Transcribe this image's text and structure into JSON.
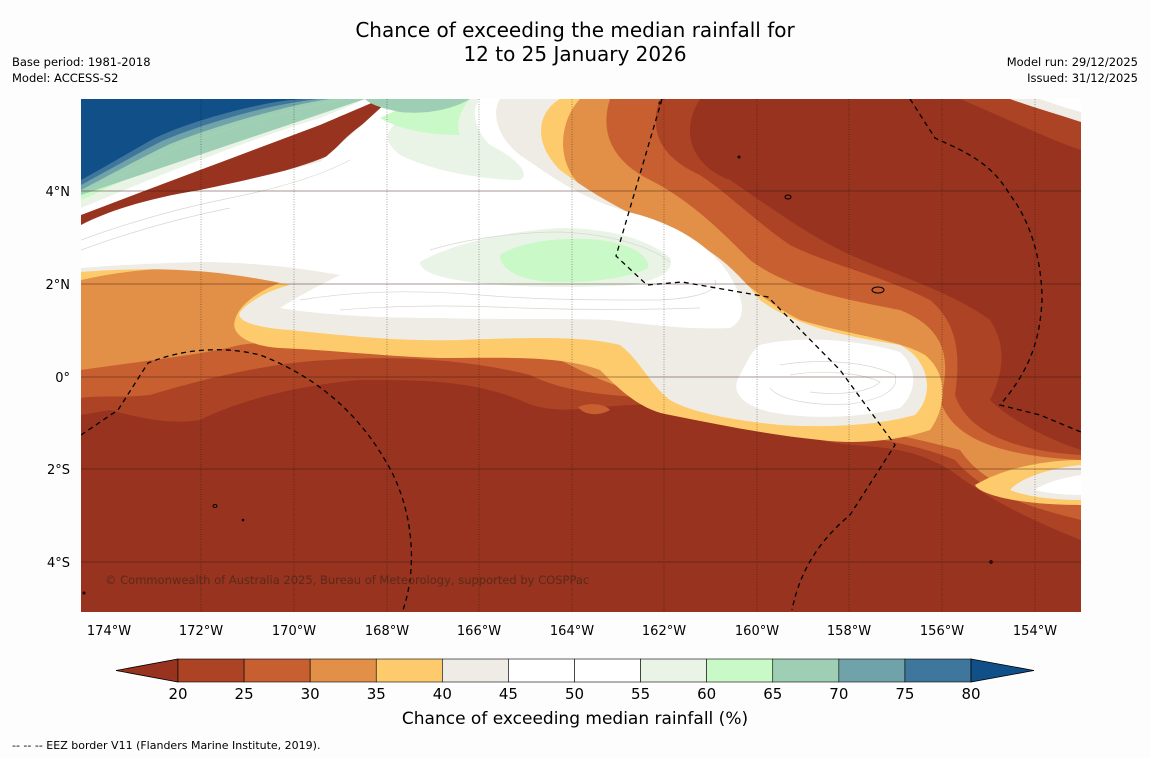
{
  "header": {
    "title_line1": "Chance of exceeding the median rainfall for",
    "title_line2": "12 to 25 January 2026",
    "base_period": "Base period: 1981-2018",
    "model": "Model: ACCESS-S2",
    "model_run": "Model run: 29/12/2025",
    "issued": "Issued: 31/12/2025"
  },
  "map": {
    "lon_ticks": [
      "174°W",
      "172°W",
      "170°W",
      "168°W",
      "166°W",
      "164°W",
      "162°W",
      "160°W",
      "158°W",
      "156°W",
      "154°W"
    ],
    "lat_ticks": [
      "4°N",
      "2°N",
      "0°",
      "2°S",
      "4°S"
    ],
    "copyright": "© Commonwealth of Australia 2025, Bureau of Meteorology, supported by COSPPac",
    "colors": {
      "c15": "#97331f",
      "c20": "#ac4324",
      "c25": "#c75f30",
      "c30": "#e28f47",
      "c35": "#fdcb6b",
      "c40": "#efebe5",
      "c45": "#ffffff",
      "c55": "#e9f4e7",
      "c60": "#c8f9c6",
      "c65": "#9ecfb4",
      "c70": "#6fa3a9",
      "c75": "#3f779c",
      "c80": "#114f88"
    }
  },
  "colorbar": {
    "ticks": [
      "20",
      "25",
      "30",
      "35",
      "40",
      "45",
      "50",
      "55",
      "60",
      "65",
      "70",
      "75",
      "80"
    ],
    "colors": [
      "#97331f",
      "#ac4324",
      "#c75f30",
      "#e28f47",
      "#fdcb6b",
      "#efebe5",
      "#ffffff",
      "#ffffff",
      "#e9f4e7",
      "#c8f9c6",
      "#9ecfb4",
      "#6fa3a9",
      "#3f779c",
      "#114f88"
    ],
    "label": "Chance of exceeding median rainfall (%)"
  },
  "footer": {
    "eez_note": "--  --  -- EEZ border V11 (Flanders Marine Institute, 2019)."
  }
}
